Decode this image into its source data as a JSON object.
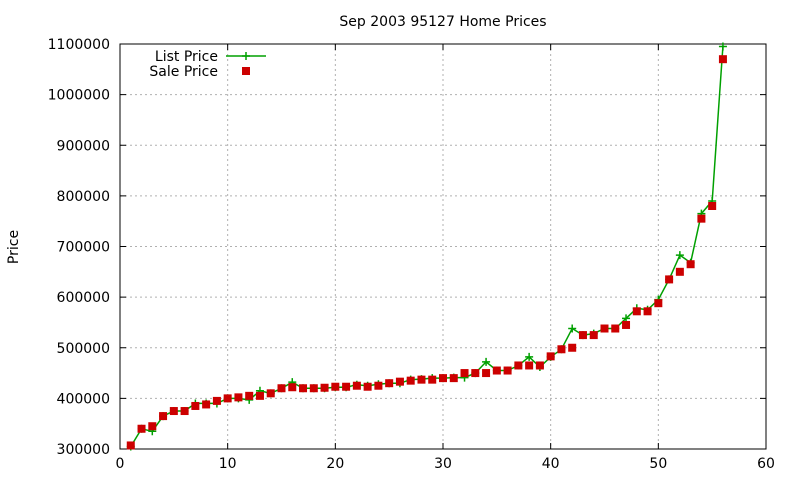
{
  "chart_data": {
    "type": "line",
    "title": "Sep 2003 95127 Home Prices",
    "xlabel": "",
    "ylabel": "Price",
    "xlim": [
      0,
      60
    ],
    "ylim": [
      300000,
      1100000
    ],
    "x_ticks": [
      "0",
      "10",
      "20",
      "30",
      "40",
      "50",
      "60"
    ],
    "y_ticks": [
      "300000",
      "400000",
      "500000",
      "600000",
      "700000",
      "800000",
      "900000",
      "1000000",
      "1100000"
    ],
    "grid": true,
    "legend_position": "top-left",
    "x": [
      1,
      2,
      3,
      4,
      5,
      6,
      7,
      8,
      9,
      10,
      11,
      12,
      13,
      14,
      15,
      16,
      17,
      18,
      19,
      20,
      21,
      22,
      23,
      24,
      25,
      26,
      27,
      28,
      29,
      30,
      31,
      32,
      33,
      34,
      35,
      36,
      37,
      38,
      39,
      40,
      41,
      42,
      43,
      44,
      45,
      46,
      47,
      48,
      49,
      50,
      51,
      52,
      53,
      54,
      55,
      56
    ],
    "series": [
      {
        "name": "List Price",
        "style": "line-points",
        "color": "#00a000",
        "values": [
          305000,
          340000,
          335000,
          365000,
          375000,
          375000,
          390000,
          390000,
          390000,
          400000,
          400000,
          397000,
          415000,
          410000,
          420000,
          432000,
          420000,
          420000,
          420000,
          422000,
          422000,
          427000,
          425000,
          428000,
          430000,
          430000,
          437000,
          438000,
          440000,
          440000,
          441000,
          441000,
          450000,
          472000,
          455000,
          455000,
          465000,
          482000,
          462000,
          482000,
          497000,
          538000,
          525000,
          528000,
          538000,
          538000,
          558000,
          578000,
          575000,
          595000,
          635000,
          683000,
          668000,
          765000,
          790000,
          1095000
        ]
      },
      {
        "name": "Sale Price",
        "style": "points",
        "color": "#cc0000",
        "values": [
          307000,
          340000,
          345000,
          365000,
          375000,
          375000,
          385000,
          388000,
          395000,
          400000,
          402000,
          405000,
          405000,
          410000,
          420000,
          422000,
          420000,
          420000,
          421000,
          423000,
          423000,
          425000,
          423000,
          425000,
          430000,
          433000,
          435000,
          437000,
          437000,
          440000,
          440000,
          450000,
          450000,
          450000,
          455000,
          455000,
          465000,
          465000,
          465000,
          483000,
          497000,
          500000,
          525000,
          525000,
          538000,
          538000,
          545000,
          572000,
          572000,
          588000,
          635000,
          650000,
          665000,
          755000,
          780000,
          1070000
        ]
      }
    ]
  }
}
